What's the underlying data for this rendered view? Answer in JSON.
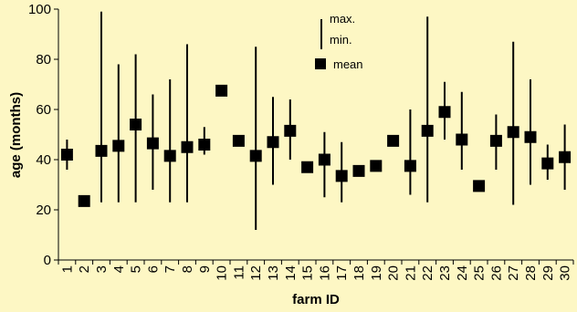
{
  "chart_data": {
    "type": "scatter",
    "xlabel": "farm ID",
    "ylabel": "age (months)",
    "ylim": [
      0,
      100
    ],
    "yticks": [
      0,
      20,
      40,
      60,
      80,
      100
    ],
    "grid": false,
    "legend_placement": "top-center",
    "legend": {
      "range_max_label": "max.",
      "range_min_label": "min.",
      "mean_label": "mean"
    },
    "categories": [
      "1",
      "2",
      "3",
      "4",
      "5",
      "6",
      "7",
      "8",
      "9",
      "10",
      "11",
      "12",
      "13",
      "14",
      "15",
      "16",
      "17",
      "18",
      "19",
      "20",
      "21",
      "22",
      "23",
      "24",
      "25",
      "26",
      "27",
      "28",
      "29",
      "30"
    ],
    "mean": [
      42,
      23.5,
      43.5,
      45.5,
      54,
      46.5,
      41.5,
      45,
      46,
      67.5,
      47.5,
      41.5,
      47,
      51.5,
      37,
      40,
      33.5,
      35.5,
      37.5,
      47.5,
      37.5,
      51.5,
      59,
      48,
      29.5,
      47.5,
      51,
      49,
      38.5,
      41
    ],
    "max": [
      48,
      null,
      99,
      78,
      82,
      66,
      72,
      86,
      53,
      null,
      null,
      85,
      65,
      64,
      null,
      51,
      47,
      null,
      null,
      null,
      60,
      97,
      71,
      67,
      null,
      58,
      87,
      72,
      46,
      54
    ],
    "min": [
      36,
      null,
      23,
      23,
      23,
      28,
      23,
      23,
      42,
      null,
      null,
      12,
      30,
      40,
      null,
      25,
      23,
      null,
      null,
      null,
      26,
      23,
      48,
      36,
      null,
      36,
      22,
      30,
      32,
      28
    ],
    "colors": {
      "marker": "#000000",
      "background": "#fdf7c4"
    }
  }
}
